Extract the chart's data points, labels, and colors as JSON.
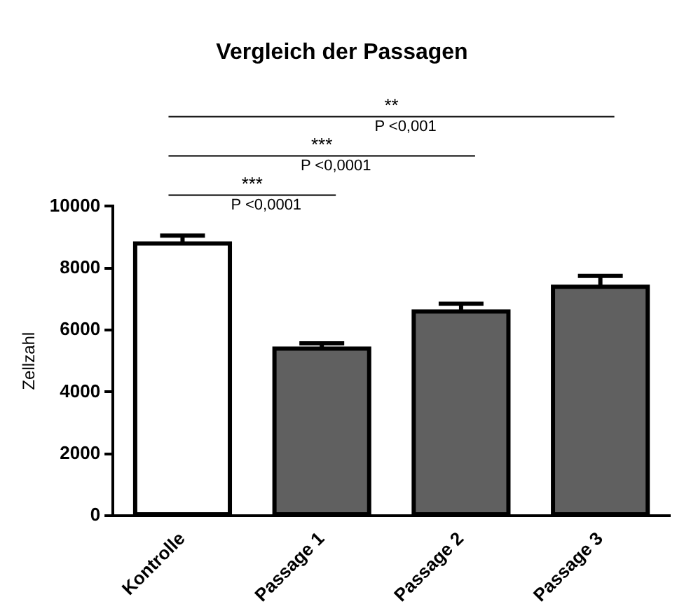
{
  "chart_data": {
    "type": "bar",
    "title": "Vergleich der Passagen",
    "ylabel": "Zellzahl",
    "categories": [
      "Kontrolle",
      "Passage 1",
      "Passage 2",
      "Passage 3"
    ],
    "values": [
      8800,
      5400,
      6600,
      7400
    ],
    "errors": [
      250,
      170,
      250,
      350
    ],
    "colors": [
      "#ffffff",
      "#606060",
      "#606060",
      "#606060"
    ],
    "ylim": [
      0,
      10000
    ],
    "yticks": [
      0,
      2000,
      4000,
      6000,
      8000,
      10000
    ],
    "grid": false,
    "legend": false,
    "annotations": [
      "***",
      "P <0,0001",
      "***",
      "P <0,0001",
      "**",
      "P <0,001"
    ]
  }
}
